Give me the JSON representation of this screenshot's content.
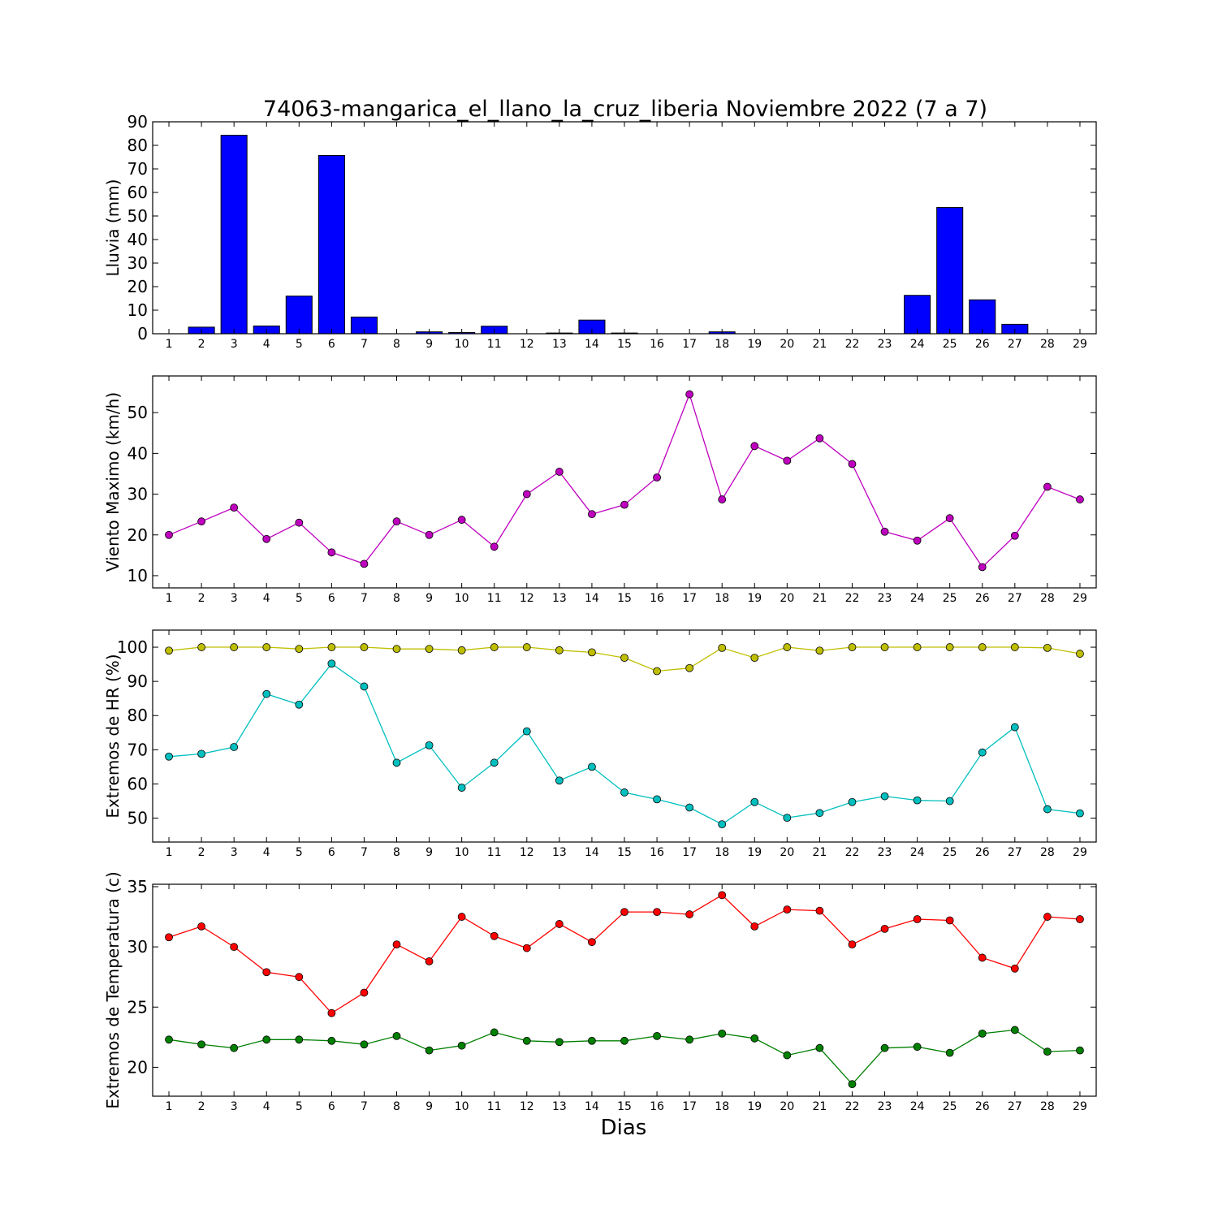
{
  "figure": {
    "title": "74063-mangarica_el_llano_la_cruz_liberia Noviembre 2022  (7 a 7)",
    "xlabel": "Dias"
  },
  "chart_data": [
    {
      "type": "bar",
      "ylabel": "Lluvia (mm)",
      "ylim": [
        0,
        90
      ],
      "yticks": [
        0,
        10,
        20,
        30,
        40,
        50,
        60,
        70,
        80,
        90
      ],
      "x": [
        1,
        2,
        3,
        4,
        5,
        6,
        7,
        8,
        9,
        10,
        11,
        12,
        13,
        14,
        15,
        16,
        17,
        18,
        19,
        20,
        21,
        22,
        23,
        24,
        25,
        26,
        27,
        28,
        29
      ],
      "series": [
        {
          "color": "#0000ff",
          "values": [
            0,
            2.8,
            84.3,
            3.3,
            16.0,
            75.7,
            7.1,
            0,
            0.8,
            0.5,
            3.2,
            0,
            0.3,
            5.8,
            0.3,
            0,
            0,
            0.8,
            0,
            0,
            0,
            0,
            0,
            16.3,
            53.6,
            14.4,
            4.0,
            0,
            0
          ]
        }
      ],
      "grid": false
    },
    {
      "type": "line",
      "ylabel": "Viento Maximo (km/h)",
      "ylim": [
        7,
        59
      ],
      "yticks": [
        10,
        20,
        30,
        40,
        50
      ],
      "x": [
        1,
        2,
        3,
        4,
        5,
        6,
        7,
        8,
        9,
        10,
        11,
        12,
        13,
        14,
        15,
        16,
        17,
        18,
        19,
        20,
        21,
        22,
        23,
        24,
        25,
        26,
        27,
        28,
        29
      ],
      "series": [
        {
          "color": "#bf00bf",
          "values": [
            20.0,
            23.3,
            26.7,
            19.0,
            23.0,
            15.7,
            12.9,
            23.3,
            20.0,
            23.7,
            17.1,
            30.0,
            35.5,
            25.1,
            27.4,
            34.1,
            54.5,
            28.7,
            41.8,
            38.2,
            43.7,
            37.4,
            20.8,
            18.6,
            24.1,
            12.1,
            19.8,
            31.8,
            28.7
          ]
        }
      ],
      "grid": false
    },
    {
      "type": "line",
      "ylabel": "Extremos de HR (%)",
      "ylim": [
        43,
        105
      ],
      "yticks": [
        50,
        60,
        70,
        80,
        90,
        100
      ],
      "x": [
        1,
        2,
        3,
        4,
        5,
        6,
        7,
        8,
        9,
        10,
        11,
        12,
        13,
        14,
        15,
        16,
        17,
        18,
        19,
        20,
        21,
        22,
        23,
        24,
        25,
        26,
        27,
        28,
        29
      ],
      "series": [
        {
          "color": "#bfbf00",
          "values": [
            99.0,
            100,
            100,
            100,
            99.5,
            100,
            100,
            99.5,
            99.5,
            99.1,
            100,
            100,
            99.1,
            98.5,
            96.9,
            93.0,
            93.9,
            99.8,
            96.9,
            100,
            99.0,
            100,
            100,
            100,
            100,
            100,
            100,
            99.8,
            98.1
          ]
        },
        {
          "color": "#00bfbf",
          "values": [
            68.0,
            68.8,
            70.8,
            86.3,
            83.2,
            95.2,
            88.5,
            66.2,
            71.3,
            58.9,
            66.2,
            75.4,
            61.0,
            65.0,
            57.5,
            55.5,
            53.1,
            48.2,
            54.7,
            50.1,
            51.5,
            54.7,
            56.4,
            55.2,
            55.0,
            69.2,
            76.6,
            52.6,
            51.4
          ]
        }
      ],
      "grid": false
    },
    {
      "type": "line",
      "ylabel": "Extremos de Temperatura (c)",
      "ylim": [
        17.6,
        35.2
      ],
      "yticks": [
        20,
        25,
        30,
        35
      ],
      "x": [
        1,
        2,
        3,
        4,
        5,
        6,
        7,
        8,
        9,
        10,
        11,
        12,
        13,
        14,
        15,
        16,
        17,
        18,
        19,
        20,
        21,
        22,
        23,
        24,
        25,
        26,
        27,
        28,
        29
      ],
      "series": [
        {
          "color": "#ff0000",
          "values": [
            30.8,
            31.7,
            30.0,
            27.9,
            27.5,
            24.5,
            26.2,
            30.2,
            28.8,
            32.5,
            30.9,
            29.9,
            31.9,
            30.4,
            32.9,
            32.9,
            32.7,
            34.3,
            31.7,
            33.1,
            33.0,
            30.2,
            31.5,
            32.3,
            32.2,
            29.1,
            28.2,
            32.5,
            32.3
          ]
        },
        {
          "color": "#008000",
          "values": [
            22.3,
            21.9,
            21.6,
            22.3,
            22.3,
            22.2,
            21.9,
            22.6,
            21.4,
            21.8,
            22.9,
            22.2,
            22.1,
            22.2,
            22.2,
            22.6,
            22.3,
            22.8,
            22.4,
            21.0,
            21.6,
            18.6,
            21.6,
            21.7,
            21.2,
            22.8,
            23.1,
            21.3,
            21.4
          ]
        }
      ],
      "grid": false
    }
  ]
}
